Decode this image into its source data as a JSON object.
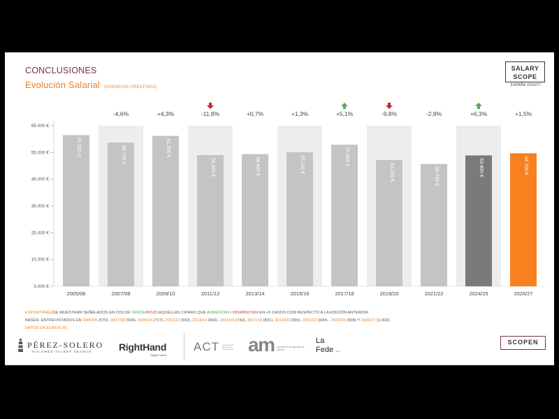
{
  "header": {
    "section": "CONCLUSIONES",
    "title": "Evolución Salarial",
    "title_note": "(AGENCIAS CREATIVAS)"
  },
  "logo_top": {
    "line1": "SALARY",
    "line2": "SCOPE",
    "sub": "ESPAÑA 2026/27"
  },
  "chart_data": {
    "type": "bar",
    "categories": [
      "2005/06",
      "2007/08",
      "2009/10",
      "2011/12",
      "2013/14",
      "2015/16",
      "2017/18",
      "2019/20",
      "2021/22",
      "2024/25",
      "2026/27"
    ],
    "values": [
      61500,
      58700,
      61200,
      54000,
      54400,
      55100,
      57900,
      52200,
      50700,
      53900,
      54700
    ],
    "value_labels": [
      "61.500 €",
      "58.700 €",
      "61.200 €",
      "54.000 €",
      "54.400 €",
      "55.100 €",
      "57.900 €",
      "52.200 €",
      "50.700 €",
      "53.900 €",
      "54.700 €"
    ],
    "changes": [
      "",
      "-4,6%",
      "+4,3%",
      "-11,8%",
      "+0,7%",
      "+1,3%",
      "+5,1%",
      "-9,8%",
      "-2,9%",
      "+6,3%",
      "+1,5%"
    ],
    "change_arrows": [
      "",
      "",
      "",
      "down",
      "",
      "",
      "up",
      "down",
      "",
      "up",
      ""
    ],
    "bar_colors": [
      "#c4c4c4",
      "#c4c4c4",
      "#c4c4c4",
      "#c4c4c4",
      "#c4c4c4",
      "#c4c4c4",
      "#c4c4c4",
      "#c4c4c4",
      "#c4c4c4",
      "#7a7a7a",
      "#f7801f"
    ],
    "shaded_columns": [
      1,
      3,
      5,
      7,
      9
    ],
    "yticks": [
      5000,
      15000,
      25000,
      35000,
      45000,
      55000,
      65000
    ],
    "ytick_labels": [
      "5.000 €",
      "15.000 €",
      "25.000 €",
      "35.000 €",
      "45.000 €",
      "55.000 €",
      "65.000 €"
    ],
    "ylim": [
      5000,
      65000
    ],
    "colors": {
      "arrow_up": "#4caf50",
      "arrow_down": "#c62828",
      "shade": "#ededed"
    }
  },
  "notes": {
    "line1": {
      "a": "ESPONTÁNEA",
      "b": "SE MUESTRAN SEÑALADOS EN COLOR ",
      "verde": "VERDE",
      "sep": "/",
      "rojo": "ROJO",
      "c": " AQUELLAS CIFRAS QUE ",
      "aumentan": "AUMENTAN",
      "d": " / ",
      "disminuyen": "DISMINUYEN",
      "e": " EN +5 CASOS CON RESPECTO A LA EDICIÓN ANTERIOR"
    },
    "bases_label": "BASES: ENTREVISTADOS EN ",
    "bases": [
      {
        "year": "2005/06",
        "n": " (570), "
      },
      {
        "year": "2007/08",
        "n": " (509), "
      },
      {
        "year": "2009/10",
        "n": " (717), "
      },
      {
        "year": "2011/12",
        "n": " (932), "
      },
      {
        "year": "2013/14",
        "n": " (842), "
      },
      {
        "year": "2015/16",
        "n": " (742), "
      },
      {
        "year": "2017/18",
        "n": " (831), "
      },
      {
        "year": "2019/20",
        "n": " (950), "
      },
      {
        "year": "2021/22",
        "n": " (684) , "
      },
      {
        "year": "2024/25",
        "n": " (908) Y "
      },
      {
        "year": "2026/27",
        "n": " (1.003)."
      }
    ],
    "line3": "DATOS EN EUROS (€)"
  },
  "logos": {
    "perez_solero": "PÉREZ-SOLERO",
    "perez_solero_tag": "TAILORED TALENT SEARCH",
    "righthand": "RightHand",
    "righthand_tag": "Digital Talent",
    "act": "ACT",
    "act_tag": "Asociación de Agencias de Comunicación",
    "am": "am",
    "am_tag": "Asociación de Agencias de Medios",
    "lafede_1": "La",
    "lafede_2": "Fede",
    "lafede_small": "fede",
    "scopen": "SCOPEN"
  }
}
